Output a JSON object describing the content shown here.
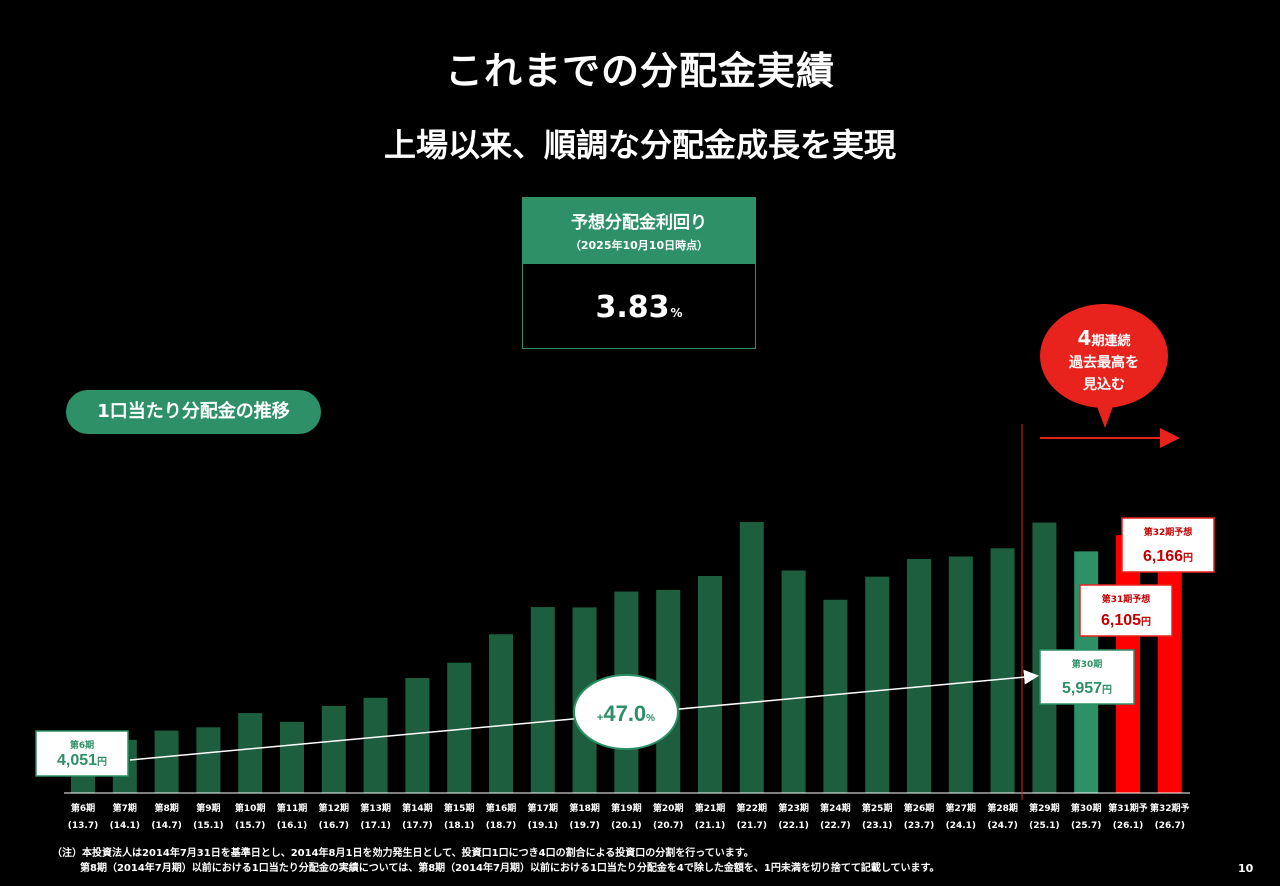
{
  "header": {
    "title": "これまでの分配金実績",
    "subtitle": "上場以来、順調な分配金成長を実現"
  },
  "yield_box": {
    "label": "予想分配金利回り",
    "date": "（2025年10月10日時点）",
    "value": "3.83",
    "unit": "%"
  },
  "trend_label": "1口当たり分配金の推移",
  "bubble": {
    "line1_big": "4",
    "line1_rest": "期連続",
    "line2": "過去最高を",
    "line3": "見込む"
  },
  "growth_label": {
    "prefix": "+",
    "value": "47.0",
    "unit": "%"
  },
  "colors": {
    "bar_actual": "#1d5e3e",
    "bar_latest": "#2d9066",
    "bar_forecast": "#ff0000",
    "accent_green": "#2d9066",
    "accent_red": "#e8231e"
  },
  "chart_data": {
    "type": "bar",
    "categories": [
      "第6期",
      "第7期",
      "第8期",
      "第9期",
      "第10期",
      "第11期",
      "第12期",
      "第13期",
      "第14期",
      "第15期",
      "第16期",
      "第17期",
      "第18期",
      "第19期",
      "第20期",
      "第21期",
      "第22期",
      "第23期",
      "第24期",
      "第25期",
      "第26期",
      "第27期",
      "第28期",
      "第29期",
      "第30期",
      "第31期予",
      "第32期予"
    ],
    "periods": [
      "(13.7)",
      "(14.1)",
      "(14.7)",
      "(15.1)",
      "(15.7)",
      "(16.1)",
      "(16.7)",
      "(17.1)",
      "(17.7)",
      "(18.1)",
      "(18.7)",
      "(19.1)",
      "(19.7)",
      "(20.1)",
      "(20.7)",
      "(21.1)",
      "(21.7)",
      "(22.1)",
      "(22.7)",
      "(23.1)",
      "(23.7)",
      "(24.1)",
      "(24.7)",
      "(25.1)",
      "(25.7)",
      "(26.1)",
      "(26.7)"
    ],
    "values": [
      4051,
      4235,
      4320,
      4350,
      4480,
      4400,
      4545,
      4620,
      4800,
      4940,
      5200,
      5448,
      5445,
      5590,
      5605,
      5732,
      6225,
      5782,
      5515,
      5726,
      5887,
      5910,
      5985,
      6220,
      5957,
      6105,
      6166
    ],
    "bar_kind": [
      "actual",
      "actual",
      "actual",
      "actual",
      "actual",
      "actual",
      "actual",
      "actual",
      "actual",
      "actual",
      "actual",
      "actual",
      "actual",
      "actual",
      "actual",
      "actual",
      "actual",
      "actual",
      "actual",
      "actual",
      "actual",
      "actual",
      "actual",
      "actual",
      "latest",
      "forecast",
      "forecast"
    ],
    "callouts": [
      {
        "index": 0,
        "label": "第6期",
        "value": "4,051",
        "unit": "円",
        "style": "green"
      },
      {
        "index": 24,
        "label": "第30期",
        "value": "5,957",
        "unit": "円",
        "style": "green"
      },
      {
        "index": 25,
        "label": "第31期予想",
        "value": "6,105",
        "unit": "円",
        "style": "red"
      },
      {
        "index": 26,
        "label": "第32期予想",
        "value": "6,166",
        "unit": "円",
        "style": "red"
      }
    ],
    "title": "",
    "xlabel": "",
    "ylabel": "",
    "ylim": [
      3750,
      6700
    ]
  },
  "notes": {
    "line1": "（注）本投資法人は2014年7月31日を基準日とし、2014年8月1日を効力発生日として、投資口1口につき4口の割合による投資口の分割を行っています。",
    "line2": "第8期（2014年7月期）以前における1口当たり分配金の実績については、第8期（2014年7月期）以前における1口当たり分配金を4で除した金額を、1円未満を切り捨てて記載しています。"
  },
  "page_number": "10"
}
